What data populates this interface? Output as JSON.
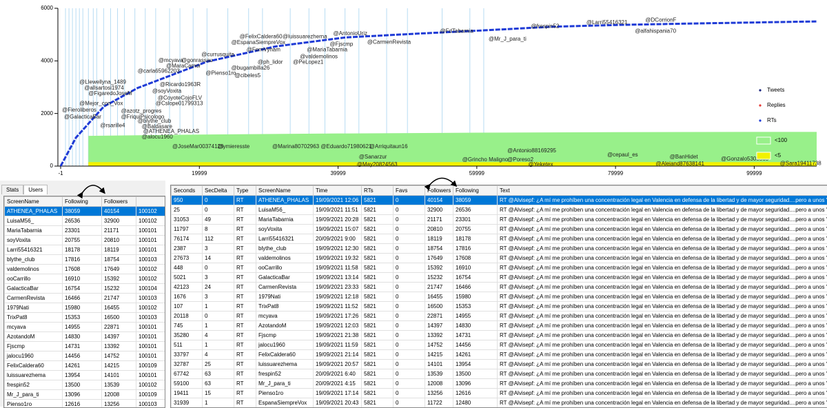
{
  "chart": {
    "xlim": [
      -1,
      109000
    ],
    "ylim": [
      0,
      6000
    ],
    "xticks": [
      -1,
      19999,
      39999,
      59999,
      79999,
      99999
    ],
    "yticks": [
      0,
      2000,
      4000,
      6000
    ],
    "legend": [
      {
        "name": "Tweets",
        "color": "#1a237e"
      },
      {
        "name": "Replies",
        "color": "#e53935"
      },
      {
        "name": "RTs",
        "color": "#1f3bd6"
      }
    ],
    "areas": [
      {
        "name": "<100",
        "color": "#98f08a",
        "x": [
          4000,
          20000,
          40000,
          60000,
          80000,
          100000,
          109000
        ],
        "values": [
          1150,
          1200,
          1240,
          1270,
          1290,
          1300,
          1300
        ]
      },
      {
        "name": "<5",
        "color": "#f2f200",
        "x": [
          4000,
          20000,
          40000,
          60000,
          80000,
          100000,
          109000
        ],
        "values": [
          150,
          150,
          150,
          150,
          150,
          150,
          150
        ]
      }
    ],
    "rts": {
      "color": "#1f3bd6",
      "x": [
        0,
        2200,
        6200,
        11100,
        21100,
        31000,
        41000,
        51000,
        61000,
        71000,
        81000,
        91000,
        109000
      ],
      "values": [
        0,
        1080,
        2260,
        2970,
        3970,
        4550,
        4890,
        5030,
        5160,
        5300,
        5370,
        5420,
        5500
      ]
    },
    "event_lines": [
      700,
      1200,
      1700,
      2200,
      2700,
      3200,
      4000,
      4700,
      5200,
      6200,
      7200,
      8200,
      9200,
      10700,
      12200,
      13700,
      15700,
      17200,
      19100,
      21100,
      24100,
      27100,
      29100,
      33100,
      35800,
      38100,
      41000,
      43000,
      47000,
      50000,
      55000,
      59000,
      61000
    ],
    "annotations": [
      {
        "label": "@DCorrionF",
        "x": 84300,
        "y": 5550
      },
      {
        "label": "@Larri55416321",
        "x": 75800,
        "y": 5450
      },
      {
        "label": "@frespin52",
        "x": 67800,
        "y": 5310
      },
      {
        "label": "@alfahispania70",
        "x": 82800,
        "y": 5130
      },
      {
        "label": "@FdTabarnia",
        "x": 54700,
        "y": 5130
      },
      {
        "label": "@Mr_J_para_ti",
        "x": 61700,
        "y": 4820
      },
      {
        "label": "@AntonioUriz",
        "x": 39300,
        "y": 5030
      },
      {
        "label": "@CarmenRevista",
        "x": 44200,
        "y": 4710
      },
      {
        "label": "@Fjscmp",
        "x": 38800,
        "y": 4630
      },
      {
        "label": "@FelixCaldera60",
        "x": 25800,
        "y": 4920
      },
      {
        "label": "@luissuarezherna",
        "x": 32000,
        "y": 4920
      },
      {
        "label": "@EspanaSiempreVox",
        "x": 24600,
        "y": 4690
      },
      {
        "label": "@FernVynam",
        "x": 26800,
        "y": 4420
      },
      {
        "label": "@MariaTabarnia",
        "x": 35500,
        "y": 4420
      },
      {
        "label": "@valdemolinos",
        "x": 34500,
        "y": 4160
      },
      {
        "label": "@currusquita",
        "x": 20300,
        "y": 4240
      },
      {
        "label": "@ph_lidor",
        "x": 28400,
        "y": 3950
      },
      {
        "label": "@PeLopez1",
        "x": 33500,
        "y": 3950
      },
      {
        "label": "@mcyava",
        "x": 14100,
        "y": 4010
      },
      {
        "label": "@gonrassau",
        "x": 17400,
        "y": 4010
      },
      {
        "label": "@MaraCamor",
        "x": 15200,
        "y": 3800
      },
      {
        "label": "@bugambilla26",
        "x": 24600,
        "y": 3720
      },
      {
        "label": "@carla65962203",
        "x": 11100,
        "y": 3610
      },
      {
        "label": "@Pienso1ro",
        "x": 20900,
        "y": 3530
      },
      {
        "label": "@cibeles5",
        "x": 25100,
        "y": 3430
      },
      {
        "label": "@Llewellyna_1489",
        "x": 2700,
        "y": 3190
      },
      {
        "label": "@Ricardo1963R",
        "x": 14300,
        "y": 3090
      },
      {
        "label": "@allsartosi1974",
        "x": 3400,
        "y": 2960
      },
      {
        "label": "@soyVoxita",
        "x": 13200,
        "y": 2850
      },
      {
        "label": "@FigaredoJoseM",
        "x": 4000,
        "y": 2750
      },
      {
        "label": "@CoyoteCojoFLV",
        "x": 14000,
        "y": 2590
      },
      {
        "label": "@Mejor_con_Vox",
        "x": 2700,
        "y": 2380
      },
      {
        "label": "@Cslope01799313",
        "x": 13700,
        "y": 2380
      },
      {
        "label": "@azotz_progres",
        "x": 8700,
        "y": 2090
      },
      {
        "label": "@FriquiPsicologo",
        "x": 8700,
        "y": 1860
      },
      {
        "label": "@Fieroliberos",
        "x": 200,
        "y": 2120
      },
      {
        "label": "@GalacticaBar",
        "x": 500,
        "y": 1860
      },
      {
        "label": "@blythe_club",
        "x": 11100,
        "y": 1700
      },
      {
        "label": "@rsarille4",
        "x": 5700,
        "y": 1540
      },
      {
        "label": "@Baldasare",
        "x": 11700,
        "y": 1490
      },
      {
        "label": "@ATHENEA_PHALAS",
        "x": 11900,
        "y": 1310
      },
      {
        "label": "@alocu1960",
        "x": 11700,
        "y": 1100
      },
      {
        "label": "@JoseMar00374126",
        "x": 16100,
        "y": 730
      },
      {
        "label": "@ymieresste",
        "x": 22600,
        "y": 730
      },
      {
        "label": "@Marina80702963",
        "x": 30500,
        "y": 730
      },
      {
        "label": "@Eduardo71980621",
        "x": 37500,
        "y": 730
      },
      {
        "label": "@Arriquitaun16",
        "x": 44500,
        "y": 730
      },
      {
        "label": "@Antonio88169295",
        "x": 64400,
        "y": 580
      },
      {
        "label": "@cepaul_es",
        "x": 78800,
        "y": 420
      },
      {
        "label": "@BanHidet",
        "x": 87800,
        "y": 340
      },
      {
        "label": "@Sanarzur",
        "x": 43000,
        "y": 340
      },
      {
        "label": "@Gonzalo5308565",
        "x": 95200,
        "y": 260
      },
      {
        "label": "@Grincho Maligno",
        "x": 57900,
        "y": 240
      },
      {
        "label": "@Poreso2",
        "x": 64400,
        "y": 240
      },
      {
        "label": "@Sara19411738",
        "x": 103700,
        "y": 100
      },
      {
        "label": "@Alejand87638141",
        "x": 85800,
        "y": 80
      },
      {
        "label": "@Yeketex",
        "x": 67400,
        "y": 50
      },
      {
        "label": "@May20824563",
        "x": 42700,
        "y": 50
      }
    ]
  },
  "tabs": [
    "Stats",
    "Users"
  ],
  "users": {
    "columns": [
      "ScreenName",
      "Following",
      "Followers"
    ],
    "rows": [
      [
        "ATHENEA_PHALAS",
        38059,
        40154,
        "100102"
      ],
      [
        "LuisaM56_",
        26536,
        32900,
        "100102"
      ],
      [
        "MariaTabarnia",
        23301,
        21171,
        "100101"
      ],
      [
        "soyVoxita",
        20755,
        20810,
        "100101"
      ],
      [
        "Larri55416321",
        18178,
        18119,
        "100101"
      ],
      [
        "blythe_club",
        17816,
        18754,
        "100103"
      ],
      [
        "valdemolinos",
        17608,
        17649,
        "100102"
      ],
      [
        "ooCarrillo",
        16910,
        15392,
        "100102"
      ],
      [
        "GalacticaBar",
        16754,
        15232,
        "100104"
      ],
      [
        "CarmenRevista",
        16466,
        21747,
        "100103"
      ],
      [
        "1979Nati",
        15980,
        16455,
        "100102"
      ],
      [
        "TrixPat8",
        15353,
        16500,
        "100103"
      ],
      [
        "mcyava",
        14955,
        22871,
        "100101"
      ],
      [
        "AzotandoM",
        14830,
        14397,
        "100101"
      ],
      [
        "Fjscmp",
        14731,
        13392,
        "100101"
      ],
      [
        "jalocu1960",
        14456,
        14752,
        "100101"
      ],
      [
        "FelixCaldera60",
        14261,
        14215,
        "100109"
      ],
      [
        "luissuarezhema",
        13954,
        14101,
        "100101"
      ],
      [
        "frespin52",
        13500,
        13539,
        "100102"
      ],
      [
        "Mr_J_para_ti",
        13096,
        12008,
        "100109"
      ],
      [
        "Pienso1ro",
        12616,
        13256,
        "100103"
      ]
    ]
  },
  "tweets": {
    "columns": [
      "Seconds",
      "SecDelta",
      "Type",
      "ScreenName",
      "Time",
      "RTs",
      "Favs",
      "Followers",
      "Following",
      "Text"
    ],
    "rows": [
      [
        950,
        0,
        "RT",
        "ATHENEA_PHALAS",
        "19/09/2021 12:06",
        5821,
        0,
        40154,
        38059,
        "RT @Alvisepf: ¿A mí me prohíben una concentración legal en Valencia en defensa de la libertad y de mayor seguridad....pero a unos \"neo-nazi..."
      ],
      [
        25,
        0,
        "RT",
        "LuisaM56_",
        "19/09/2021 11:51",
        5821,
        0,
        32900,
        26536,
        "RT @Alvisepf: ¿A mí me prohíben una concentración legal en Valencia en defensa de la libertad y de mayor seguridad....pero a unos \"neo-nazi..."
      ],
      [
        31053,
        49,
        "RT",
        "MariaTabarnia",
        "19/09/2021 20:28",
        5821,
        0,
        21171,
        23301,
        "RT @Alvisepf: ¿A mí me prohíben una concentración legal en Valencia en defensa de la libertad y de mayor seguridad....pero a unos \"neo-nazi..."
      ],
      [
        11797,
        8,
        "RT",
        "soyVoxita",
        "19/09/2021 15:07",
        5821,
        0,
        20810,
        20755,
        "RT @Alvisepf: ¿A mí me prohíben una concentración legal en Valencia en defensa de la libertad y de mayor seguridad....pero a unos \"neo-nazi..."
      ],
      [
        76174,
        112,
        "RT",
        "Larri55416321",
        "20/09/2021 9:00",
        5821,
        0,
        18119,
        18178,
        "RT @Alvisepf: ¿A mí me prohíben una concentración legal en Valencia en defensa de la libertad y de mayor seguridad....pero a unos \"neo-nazi..."
      ],
      [
        2387,
        3,
        "RT",
        "blythe_club",
        "19/09/2021 12:30",
        5821,
        0,
        18754,
        17816,
        "RT @Alvisepf: ¿A mí me prohíben una concentración legal en Valencia en defensa de la libertad y de mayor seguridad....pero a unos \"neo-nazi..."
      ],
      [
        27673,
        14,
        "RT",
        "valdemolinos",
        "19/09/2021 19:32",
        5821,
        0,
        17649,
        17608,
        "RT @Alvisepf: ¿A mí me prohíben una concentración legal en Valencia en defensa de la libertad y de mayor seguridad....pero a unos \"neo-nazi..."
      ],
      [
        448,
        0,
        "RT",
        "ooCarrillo",
        "19/09/2021 11:58",
        5821,
        0,
        15392,
        16910,
        "RT @Alvisepf: ¿A mí me prohíben una concentración legal en Valencia en defensa de la libertad y de mayor seguridad....pero a unos \"neo-nazi..."
      ],
      [
        5021,
        3,
        "RT",
        "GalacticaBar",
        "19/09/2021 13:14",
        5821,
        0,
        15232,
        16754,
        "RT @Alvisepf: ¿A mí me prohíben una concentración legal en Valencia en defensa de la libertad y de mayor seguridad....pero a unos \"neo-nazi..."
      ],
      [
        42123,
        24,
        "RT",
        "CarmenRevista",
        "19/09/2021 23:33",
        5821,
        0,
        21747,
        16466,
        "RT @Alvisepf: ¿A mí me prohíben una concentración legal en Valencia en defensa de la libertad y de mayor seguridad....pero a unos \"neo-nazi..."
      ],
      [
        1676,
        3,
        "RT",
        "1979Nati",
        "19/09/2021 12:18",
        5821,
        0,
        16455,
        15980,
        "RT @Alvisepf: ¿A mí me prohíben una concentración legal en Valencia en defensa de la libertad y de mayor seguridad....pero a unos \"neo-nazi..."
      ],
      [
        107,
        1,
        "RT",
        "TrixPat8",
        "19/09/2021 11:52",
        5821,
        0,
        16500,
        15353,
        "RT @Alvisepf: ¿A mí me prohíben una concentración legal en Valencia en defensa de la libertad y de mayor seguridad....pero a unos \"neo-nazi..."
      ],
      [
        20118,
        0,
        "RT",
        "mcyava",
        "19/09/2021 17:26",
        5821,
        0,
        22871,
        14955,
        "RT @Alvisepf: ¿A mí me prohíben una concentración legal en Valencia en defensa de la libertad y de mayor seguridad....pero a unos \"neo-nazi..."
      ],
      [
        745,
        1,
        "RT",
        "AzotandoM",
        "19/09/2021 12:03",
        5821,
        0,
        14397,
        14830,
        "RT @Alvisepf: ¿A mí me prohíben una concentración legal en Valencia en defensa de la libertad y de mayor seguridad....pero a unos \"neo-nazi..."
      ],
      [
        35280,
        4,
        "RT",
        "Fjscmp",
        "19/09/2021 21:38",
        5821,
        0,
        13392,
        14731,
        "RT @Alvisepf: ¿A mí me prohíben una concentración legal en Valencia en defensa de la libertad y de mayor seguridad....pero a unos \"neo-nazi..."
      ],
      [
        511,
        1,
        "RT",
        "jalocu1960",
        "19/09/2021 11:59",
        5821,
        0,
        14752,
        14456,
        "RT @Alvisepf: ¿A mí me prohíben una concentración legal en Valencia en defensa de la libertad y de mayor seguridad....pero a unos \"neo-nazi..."
      ],
      [
        33797,
        4,
        "RT",
        "FelixCaldera60",
        "19/09/2021 21:14",
        5821,
        0,
        14215,
        14261,
        "RT @Alvisepf: ¿A mí me prohíben una concentración legal en Valencia en defensa de la libertad y de mayor seguridad....pero a unos \"neo-nazi..."
      ],
      [
        32787,
        25,
        "RT",
        "luissuarezhema",
        "19/09/2021 20:57",
        5821,
        0,
        14101,
        13954,
        "RT @Alvisepf: ¿A mí me prohíben una concentración legal en Valencia en defensa de la libertad y de mayor seguridad....pero a unos \"neo-nazi..."
      ],
      [
        67742,
        63,
        "RT",
        "frespin52",
        "20/09/2021 6:40",
        5821,
        0,
        13539,
        13500,
        "RT @Alvisepf: ¿A mí me prohíben una concentración legal en Valencia en defensa de la libertad y de mayor seguridad....pero a unos \"neo-nazi..."
      ],
      [
        59100,
        63,
        "RT",
        "Mr_J_para_ti",
        "20/09/2021 4:15",
        5821,
        0,
        12008,
        13096,
        "RT @Alvisepf: ¿A mí me prohíben una concentración legal en Valencia en defensa de la libertad y de mayor seguridad....pero a unos \"neo-nazi..."
      ],
      [
        19411,
        15,
        "RT",
        "Pienso1ro",
        "19/09/2021 17:14",
        5821,
        0,
        13256,
        12616,
        "RT @Alvisepf: ¿A mí me prohíben una concentración legal en Valencia en defensa de la libertad y de mayor seguridad....pero a unos \"neo-nazi..."
      ],
      [
        31939,
        1,
        "RT",
        "EspanaSiempreVox",
        "19/09/2021 20:43",
        5821,
        0,
        11722,
        12480,
        "RT @Alvisepf: ¿A mí me prohíben una concentración legal en Valencia en defensa de la libertad y de mayor seguridad....pero a unos \"neo-nazi..."
      ]
    ]
  }
}
